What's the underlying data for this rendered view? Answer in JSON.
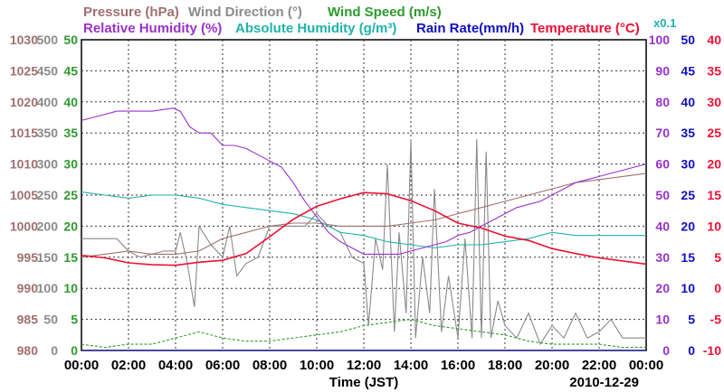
{
  "chart_data": {
    "type": "line",
    "date": "2010-12-29",
    "xlabel": "Time (JST)",
    "x_ticks": [
      "00:00",
      "02:00",
      "04:00",
      "06:00",
      "08:00",
      "10:00",
      "12:00",
      "14:00",
      "16:00",
      "18:00",
      "20:00",
      "22:00",
      "00:00"
    ],
    "title_row1": [
      {
        "text": "Pressure (hPa)",
        "color": "#a07070"
      },
      {
        "text": "Wind Direction (°)",
        "color": "#8a8a8a"
      },
      {
        "text": "Wind Speed (m/s)",
        "color": "#2e9a2e"
      }
    ],
    "title_row2": [
      {
        "text": "Relative Humidity (%)",
        "color": "#9932cc"
      },
      {
        "text": "Absolute Humidity (g/m³)",
        "color": "#20b2aa"
      },
      {
        "text": "Rain Rate(mm/h)",
        "color": "#1010c0"
      },
      {
        "text": "Temperature (°C)",
        "color": "#ee1133"
      }
    ],
    "scale_note": "x0.1",
    "axes": {
      "pressure": {
        "color": "#a07070",
        "ticks": [
          "1030",
          "1025",
          "1020",
          "1015",
          "1010",
          "1005",
          "1000",
          "995",
          "990",
          "985",
          "980"
        ],
        "range": [
          980,
          1030
        ]
      },
      "wind_direction": {
        "color": "#8a8a8a",
        "ticks": [
          "500",
          "450",
          "400",
          "350",
          "300",
          "250",
          "200",
          "150",
          "100",
          "50",
          "0"
        ],
        "range": [
          0,
          500
        ]
      },
      "wind_speed": {
        "color": "#2e9a2e",
        "ticks": [
          "50",
          "45",
          "40",
          "35",
          "30",
          "25",
          "20",
          "15",
          "10",
          "5",
          "0"
        ],
        "range": [
          0,
          50
        ]
      },
      "humidity": {
        "color": "#9932cc",
        "ticks": [
          "100",
          "90",
          "80",
          "70",
          "60",
          "50",
          "40",
          "30",
          "20",
          "10",
          "0"
        ],
        "range": [
          0,
          100
        ]
      },
      "rain_rate": {
        "color": "#1010c0",
        "ticks": [
          "50",
          "45",
          "40",
          "35",
          "30",
          "25",
          "20",
          "15",
          "10",
          "5",
          "0"
        ],
        "range": [
          0,
          50
        ]
      },
      "temperature": {
        "color": "#ee1133",
        "ticks": [
          "40",
          "35",
          "30",
          "25",
          "20",
          "15",
          "10",
          "5",
          "0",
          "-5",
          "-10"
        ],
        "range": [
          -10,
          40
        ]
      }
    },
    "series": [
      {
        "name": "Relative Humidity",
        "unit": "%",
        "color": "#9932cc",
        "x": [
          0,
          0.5,
          1,
          1.5,
          2,
          3,
          3.9,
          4.2,
          4.6,
          5,
          5.5,
          6,
          6.5,
          7,
          7.5,
          8,
          8.5,
          9,
          9.5,
          10,
          10.5,
          11,
          11.5,
          12,
          12.5,
          13,
          13.5,
          14,
          14.5,
          15,
          15.5,
          16,
          16.5,
          17,
          17.5,
          18,
          18.5,
          19,
          19.5,
          20,
          20.5,
          21,
          21.5,
          22,
          22.5,
          23,
          24
        ],
        "y": [
          74,
          75,
          76,
          77,
          77,
          77,
          78,
          77,
          72,
          70,
          70,
          66,
          66,
          65,
          63,
          61,
          59,
          54,
          48,
          43,
          38,
          35,
          33,
          31,
          31,
          31,
          31,
          32,
          33,
          34,
          35,
          37,
          38,
          40,
          42,
          44,
          46,
          47,
          48,
          50,
          52,
          54,
          55,
          56,
          57,
          58,
          60
        ]
      },
      {
        "name": "Absolute Humidity",
        "unit": "g/m3 x0.1",
        "color": "#20b2aa",
        "x": [
          0,
          1,
          2,
          3,
          4,
          5,
          6,
          7,
          8,
          9,
          10,
          11,
          12,
          13,
          14,
          15,
          16,
          17,
          18,
          19,
          20,
          21,
          22,
          23,
          24
        ],
        "y": [
          51,
          50,
          49,
          50,
          50,
          49,
          47,
          46,
          45,
          44,
          42,
          38,
          37,
          35,
          34,
          33,
          34,
          34,
          35,
          36,
          38,
          37,
          37,
          37,
          37
        ]
      },
      {
        "name": "Temperature",
        "unit": "°C",
        "color": "#ee1133",
        "x": [
          0,
          1,
          2,
          3,
          4,
          5,
          6,
          7,
          8,
          9,
          10,
          11,
          12,
          13,
          14,
          15,
          16,
          17,
          18,
          19,
          20,
          21,
          22,
          23,
          24
        ],
        "y": [
          5.3,
          4.9,
          4.1,
          3.8,
          3.7,
          4.2,
          4.5,
          5.6,
          8.3,
          11.1,
          13.2,
          14.4,
          15.4,
          15.2,
          14.1,
          12.5,
          10.5,
          9.7,
          8.4,
          7.7,
          6.4,
          5.6,
          4.9,
          4.4,
          3.9
        ]
      },
      {
        "name": "Pressure",
        "unit": "hPa",
        "color": "#a07070",
        "x": [
          0,
          1,
          2,
          3,
          4,
          5,
          6,
          7,
          8,
          9,
          10,
          11,
          12,
          13,
          14,
          15,
          16,
          17,
          18,
          19,
          20,
          21,
          22,
          23,
          24
        ],
        "y": [
          995,
          995.5,
          996,
          995.5,
          995.5,
          996,
          998,
          999,
          1000,
          1000.5,
          1000.5,
          1000,
          1000,
          1000,
          1000.5,
          1001,
          1002,
          1003,
          1004,
          1005,
          1006,
          1007,
          1007.5,
          1008,
          1008.5
        ]
      },
      {
        "name": "Wind Direction",
        "unit": "°",
        "color": "#8a8a8a",
        "x": [
          0,
          0.5,
          1,
          1.5,
          2,
          2.5,
          3,
          3.5,
          4,
          4.2,
          4.5,
          4.8,
          5,
          5.5,
          6,
          6.3,
          6.6,
          7,
          7.5,
          8,
          8.5,
          9,
          9.5,
          10,
          10.5,
          11,
          11.5,
          12,
          12.2,
          12.5,
          12.8,
          13,
          13.3,
          13.5,
          13.8,
          14,
          14.2,
          14.5,
          14.8,
          15,
          15.3,
          15.6,
          16,
          16.3,
          16.6,
          16.8,
          17,
          17.2,
          17.4,
          17.7,
          18,
          18.5,
          19,
          19.5,
          20,
          20.5,
          21,
          21.5,
          22,
          22.5,
          23,
          23.5,
          24
        ],
        "y": [
          180,
          180,
          180,
          180,
          160,
          150,
          155,
          160,
          160,
          190,
          140,
          70,
          200,
          170,
          150,
          200,
          120,
          140,
          150,
          200,
          200,
          200,
          200,
          220,
          200,
          190,
          150,
          140,
          40,
          180,
          130,
          300,
          30,
          190,
          60,
          340,
          20,
          150,
          60,
          260,
          30,
          120,
          20,
          180,
          20,
          340,
          20,
          320,
          20,
          80,
          40,
          20,
          60,
          10,
          40,
          20,
          60,
          20,
          30,
          50,
          20,
          20,
          20
        ]
      },
      {
        "name": "Wind Speed",
        "unit": "m/s",
        "color": "#2e9a2e",
        "x": [
          0,
          1,
          2,
          3,
          4,
          5,
          6,
          7,
          8,
          9,
          10,
          11,
          12,
          13,
          14,
          15,
          16,
          17,
          18,
          19,
          20,
          21,
          22,
          23,
          24
        ],
        "y": [
          1,
          0.5,
          1,
          1,
          2,
          3,
          2,
          1.5,
          1.5,
          2,
          2.5,
          3,
          4,
          4.5,
          5,
          4,
          3.5,
          3,
          2.5,
          1.5,
          1,
          1,
          1,
          0.5,
          0.5
        ]
      },
      {
        "name": "Rain Rate",
        "unit": "mm/h",
        "color": "#1010c0",
        "x": [
          0,
          24
        ],
        "y": [
          0,
          0
        ]
      }
    ]
  }
}
